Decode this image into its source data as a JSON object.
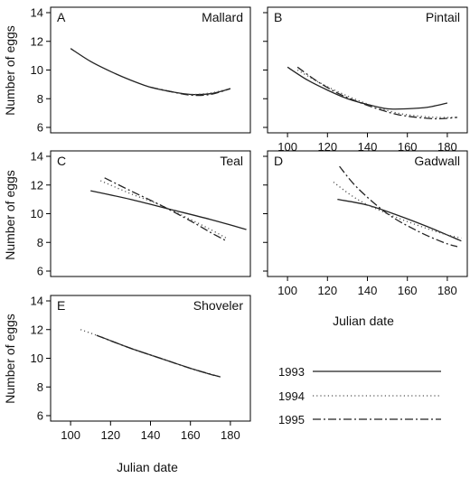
{
  "axis_labels": {
    "y": "Number of eggs",
    "x": "Julian date"
  },
  "legend": {
    "entries": [
      {
        "label": "1993",
        "dash": "solid",
        "color": "#222222"
      },
      {
        "label": "1994",
        "dash": "dotted",
        "color": "#555555"
      },
      {
        "label": "1995",
        "dash": "dashdot",
        "color": "#222222"
      }
    ]
  },
  "chart_data": [
    {
      "type": "line",
      "letter": "A",
      "title": "Mallard",
      "xlim": [
        90,
        190
      ],
      "ylim": [
        6,
        14
      ],
      "xticks": [
        100,
        120,
        140,
        160,
        180
      ],
      "yticks": [
        6,
        8,
        10,
        12,
        14
      ],
      "series": [
        {
          "name": "1993",
          "x": [
            100,
            110,
            120,
            130,
            140,
            150,
            160,
            170,
            180
          ],
          "y": [
            11.5,
            10.6,
            9.9,
            9.3,
            8.8,
            8.5,
            8.3,
            8.35,
            8.7
          ]
        },
        {
          "name": "1994",
          "x": [
            140,
            150,
            160,
            170,
            180
          ],
          "y": [
            8.8,
            8.5,
            8.3,
            8.4,
            8.7
          ]
        },
        {
          "name": "1995",
          "x": [
            140,
            150,
            160,
            170,
            180
          ],
          "y": [
            8.8,
            8.5,
            8.25,
            8.3,
            8.7
          ]
        }
      ]
    },
    {
      "type": "line",
      "letter": "B",
      "title": "Pintail",
      "xlim": [
        90,
        190
      ],
      "ylim": [
        6,
        14
      ],
      "xticks": [
        100,
        120,
        140,
        160,
        180
      ],
      "yticks": [
        6,
        8,
        10,
        12,
        14
      ],
      "series": [
        {
          "name": "1993",
          "x": [
            100,
            110,
            120,
            130,
            140,
            150,
            160,
            170,
            180
          ],
          "y": [
            10.2,
            9.3,
            8.6,
            8.0,
            7.6,
            7.3,
            7.3,
            7.4,
            7.7
          ]
        },
        {
          "name": "1994",
          "x": [
            105,
            115,
            125,
            135,
            145,
            155,
            165,
            175,
            185
          ],
          "y": [
            10.0,
            9.2,
            8.5,
            7.9,
            7.4,
            7.0,
            6.8,
            6.7,
            6.7
          ]
        },
        {
          "name": "1995",
          "x": [
            105,
            115,
            125,
            135,
            145,
            155,
            165,
            175,
            185
          ],
          "y": [
            10.2,
            9.2,
            8.4,
            7.8,
            7.3,
            6.9,
            6.7,
            6.6,
            6.7
          ]
        }
      ]
    },
    {
      "type": "line",
      "letter": "C",
      "title": "Teal",
      "xlim": [
        90,
        190
      ],
      "ylim": [
        6,
        14
      ],
      "xticks": [
        100,
        120,
        140,
        160,
        180
      ],
      "yticks": [
        6,
        8,
        10,
        12,
        14
      ],
      "series": [
        {
          "name": "1993",
          "x": [
            110,
            130,
            150,
            170,
            188
          ],
          "y": [
            11.6,
            11.0,
            10.3,
            9.6,
            8.9
          ]
        },
        {
          "name": "1994",
          "x": [
            115,
            130,
            145,
            160,
            170,
            178
          ],
          "y": [
            12.3,
            11.4,
            10.6,
            9.6,
            8.9,
            8.3
          ]
        },
        {
          "name": "1995",
          "x": [
            117,
            130,
            145,
            160,
            170,
            178
          ],
          "y": [
            12.5,
            11.6,
            10.6,
            9.5,
            8.7,
            8.1
          ]
        }
      ]
    },
    {
      "type": "line",
      "letter": "D",
      "title": "Gadwall",
      "xlim": [
        90,
        190
      ],
      "ylim": [
        6,
        14
      ],
      "xticks": [
        100,
        120,
        140,
        160,
        180
      ],
      "yticks": [
        6,
        8,
        10,
        12,
        14
      ],
      "series": [
        {
          "name": "1993",
          "x": [
            125,
            140,
            155,
            170,
            187
          ],
          "y": [
            11.0,
            10.6,
            9.9,
            9.1,
            8.1
          ]
        },
        {
          "name": "1994",
          "x": [
            123,
            135,
            150,
            165,
            178,
            187
          ],
          "y": [
            12.2,
            11.0,
            10.0,
            9.2,
            8.6,
            8.3
          ]
        },
        {
          "name": "1995",
          "x": [
            126,
            135,
            150,
            165,
            178,
            185
          ],
          "y": [
            13.3,
            11.8,
            10.0,
            8.8,
            8.0,
            7.7
          ]
        }
      ]
    },
    {
      "type": "line",
      "letter": "E",
      "title": "Shoveler",
      "xlim": [
        90,
        190
      ],
      "ylim": [
        6,
        14
      ],
      "xticks": [
        100,
        120,
        140,
        160,
        180
      ],
      "yticks": [
        6,
        8,
        10,
        12,
        14
      ],
      "series": [
        {
          "name": "1993",
          "x": [
            115,
            130,
            145,
            160,
            172
          ],
          "y": [
            11.5,
            10.7,
            10.0,
            9.3,
            8.8
          ]
        },
        {
          "name": "1994",
          "x": [
            105,
            115,
            130,
            145,
            160,
            175
          ],
          "y": [
            12.0,
            11.5,
            10.7,
            10.0,
            9.3,
            8.7
          ]
        },
        {
          "name": "1995",
          "x": [
            113,
            130,
            145,
            160,
            175
          ],
          "y": [
            11.6,
            10.7,
            10.0,
            9.3,
            8.7
          ]
        }
      ]
    }
  ]
}
